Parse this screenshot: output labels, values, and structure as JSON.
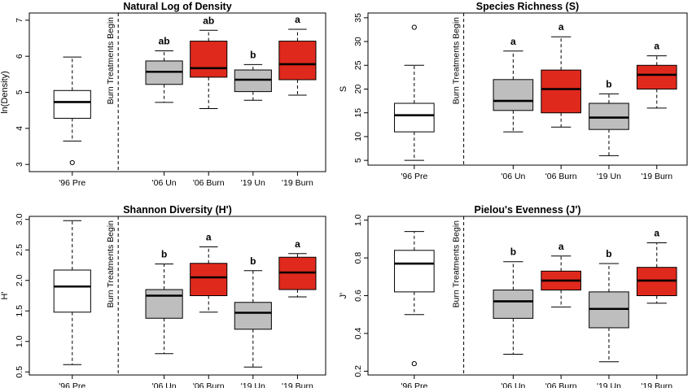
{
  "chart_data": [
    {
      "type": "box",
      "title": "Natural Log of Density",
      "ylabel": "ln(Density)",
      "ylim": [
        2.8,
        7.2
      ],
      "yticks": [
        3,
        4,
        5,
        6,
        7
      ],
      "annotation": "Burn Treatments Begin",
      "categories": [
        "'96 Pre",
        "'06 Un",
        "'06 Burn",
        "'19 Un",
        "'19 Burn"
      ],
      "boxes": [
        {
          "label": "'96 Pre",
          "min": 3.65,
          "q1": 4.28,
          "median": 4.73,
          "q3": 5.05,
          "max": 5.98,
          "outliers": [
            3.05
          ],
          "color": "#ffffff",
          "letter": ""
        },
        {
          "label": "'06 Un",
          "min": 4.72,
          "q1": 5.22,
          "median": 5.57,
          "q3": 5.87,
          "max": 6.15,
          "outliers": [],
          "color": "#bebebe",
          "letter": "ab"
        },
        {
          "label": "'06 Burn",
          "min": 4.55,
          "q1": 5.42,
          "median": 5.67,
          "q3": 6.42,
          "max": 6.72,
          "outliers": [],
          "color": "#e0291d",
          "letter": "ab"
        },
        {
          "label": "'19 Un",
          "min": 4.78,
          "q1": 5.02,
          "median": 5.35,
          "q3": 5.62,
          "max": 5.77,
          "outliers": [],
          "color": "#bebebe",
          "letter": "b"
        },
        {
          "label": "'19 Burn",
          "min": 4.92,
          "q1": 5.35,
          "median": 5.78,
          "q3": 6.42,
          "max": 6.75,
          "outliers": [],
          "color": "#e0291d",
          "letter": "a"
        }
      ]
    },
    {
      "type": "box",
      "title": "Species Richness (S)",
      "ylabel": "S",
      "ylim": [
        4,
        36
      ],
      "yticks": [
        5,
        10,
        15,
        20,
        25,
        30,
        35
      ],
      "annotation": "Burn Treatments Begin",
      "categories": [
        "'96 Pre",
        "'06 Un",
        "'06 Burn",
        "'19 Un",
        "'19 Burn"
      ],
      "boxes": [
        {
          "label": "'96 Pre",
          "min": 5,
          "q1": 11,
          "median": 14.5,
          "q3": 17,
          "max": 25,
          "outliers": [
            33
          ],
          "color": "#ffffff",
          "letter": ""
        },
        {
          "label": "'06 Un",
          "min": 11,
          "q1": 15.5,
          "median": 17.5,
          "q3": 22,
          "max": 28,
          "outliers": [],
          "color": "#bebebe",
          "letter": "a"
        },
        {
          "label": "'06 Burn",
          "min": 12,
          "q1": 15,
          "median": 20,
          "q3": 24,
          "max": 31,
          "outliers": [],
          "color": "#e0291d",
          "letter": "a"
        },
        {
          "label": "'19 Un",
          "min": 6,
          "q1": 11.5,
          "median": 14,
          "q3": 17,
          "max": 19,
          "outliers": [],
          "color": "#bebebe",
          "letter": "b"
        },
        {
          "label": "'19 Burn",
          "min": 16,
          "q1": 20,
          "median": 23,
          "q3": 25,
          "max": 27,
          "outliers": [],
          "color": "#e0291d",
          "letter": "a"
        }
      ]
    },
    {
      "type": "box",
      "title": "Shannon Diversity (H')",
      "ylabel": "H'",
      "ylim": [
        0.45,
        3.05
      ],
      "yticks": [
        0.5,
        1.0,
        1.5,
        2.0,
        2.5,
        3.0
      ],
      "annotation": "Burn Treatments Begin",
      "categories": [
        "'96 Pre",
        "'06 Un",
        "'06 Burn",
        "'19 Un",
        "'19 Burn"
      ],
      "boxes": [
        {
          "label": "'96 Pre",
          "min": 0.62,
          "q1": 1.48,
          "median": 1.9,
          "q3": 2.17,
          "max": 2.98,
          "outliers": [],
          "color": "#ffffff",
          "letter": ""
        },
        {
          "label": "'06 Un",
          "min": 0.8,
          "q1": 1.38,
          "median": 1.75,
          "q3": 1.85,
          "max": 2.27,
          "outliers": [],
          "color": "#bebebe",
          "letter": "b"
        },
        {
          "label": "'06 Burn",
          "min": 1.48,
          "q1": 1.75,
          "median": 2.05,
          "q3": 2.28,
          "max": 2.55,
          "outliers": [],
          "color": "#e0291d",
          "letter": "a"
        },
        {
          "label": "'19 Un",
          "min": 0.58,
          "q1": 1.2,
          "median": 1.47,
          "q3": 1.64,
          "max": 2.16,
          "outliers": [],
          "color": "#bebebe",
          "letter": "b"
        },
        {
          "label": "'19 Burn",
          "min": 1.73,
          "q1": 1.85,
          "median": 2.13,
          "q3": 2.38,
          "max": 2.44,
          "outliers": [],
          "color": "#e0291d",
          "letter": "a"
        }
      ]
    },
    {
      "type": "box",
      "title": "Pielou's Evenness (J')",
      "ylabel": "J'",
      "ylim": [
        0.18,
        1.02
      ],
      "yticks": [
        0.2,
        0.4,
        0.6,
        0.8,
        1.0
      ],
      "annotation": "Burn Treatments Begin",
      "categories": [
        "'96 Pre",
        "'06 Un",
        "'06 Burn",
        "'19 Un",
        "'19 Burn"
      ],
      "boxes": [
        {
          "label": "'96 Pre",
          "min": 0.5,
          "q1": 0.62,
          "median": 0.77,
          "q3": 0.84,
          "max": 0.94,
          "outliers": [
            0.24
          ],
          "color": "#ffffff",
          "letter": ""
        },
        {
          "label": "'06 Un",
          "min": 0.29,
          "q1": 0.48,
          "median": 0.57,
          "q3": 0.63,
          "max": 0.78,
          "outliers": [],
          "color": "#bebebe",
          "letter": "b"
        },
        {
          "label": "'06 Burn",
          "min": 0.54,
          "q1": 0.63,
          "median": 0.68,
          "q3": 0.73,
          "max": 0.81,
          "outliers": [],
          "color": "#e0291d",
          "letter": "a"
        },
        {
          "label": "'19 Un",
          "min": 0.25,
          "q1": 0.43,
          "median": 0.53,
          "q3": 0.62,
          "max": 0.77,
          "outliers": [],
          "color": "#bebebe",
          "letter": "b"
        },
        {
          "label": "'19 Burn",
          "min": 0.56,
          "q1": 0.6,
          "median": 0.68,
          "q3": 0.75,
          "max": 0.88,
          "outliers": [],
          "color": "#e0291d",
          "letter": "a"
        }
      ]
    }
  ]
}
